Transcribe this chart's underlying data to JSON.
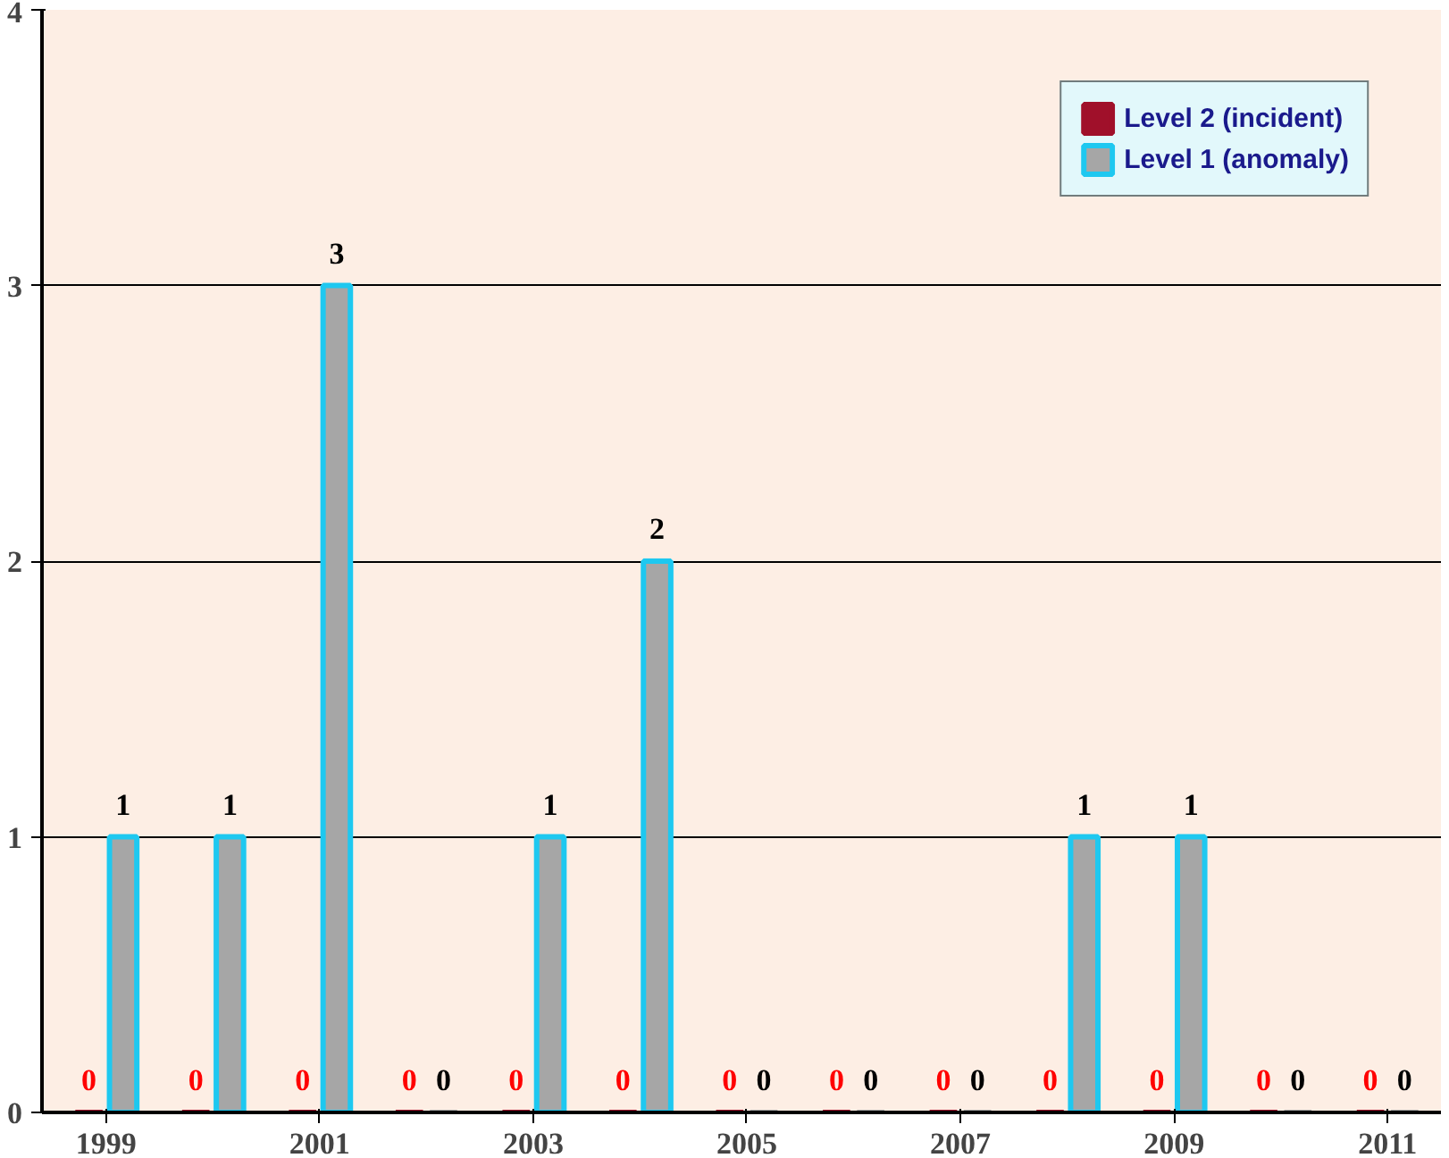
{
  "chart_data": {
    "type": "bar",
    "categories": [
      "1999",
      null,
      "2001",
      null,
      "2003",
      null,
      "2005",
      null,
      "2007",
      null,
      "2009",
      null,
      "2011"
    ],
    "series": [
      {
        "name": "Level 2 (incident)",
        "color": "#a0102a",
        "values": [
          0,
          0,
          0,
          0,
          0,
          0,
          0,
          0,
          0,
          0,
          0,
          0,
          0
        ]
      },
      {
        "name": "Level 1 (anomaly)",
        "color": "#a6a6a6",
        "values": [
          1,
          1,
          3,
          0,
          1,
          2,
          0,
          0,
          0,
          1,
          1,
          0,
          0
        ]
      }
    ],
    "ylim": [
      0,
      4
    ],
    "yticks": [
      0,
      1,
      2,
      3,
      4
    ],
    "grid": "y",
    "legend": "top right",
    "data_labels": true
  }
}
